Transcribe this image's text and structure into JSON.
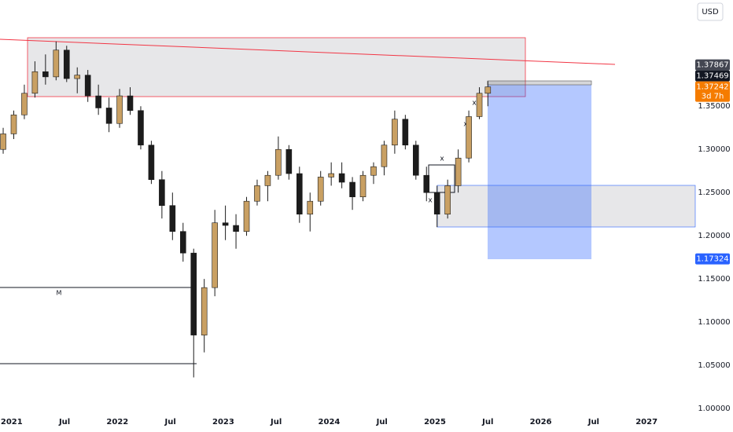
{
  "chart_data": {
    "type": "candlestick",
    "currency": "USD",
    "x": [
      2020.92,
      2021.02,
      2021.12,
      2021.22,
      2021.32,
      2021.42,
      2021.52,
      2021.62,
      2021.72,
      2021.82,
      2021.92,
      2022.02,
      2022.12,
      2022.22,
      2022.32,
      2022.42,
      2022.52,
      2022.62,
      2022.72,
      2022.82,
      2022.92,
      2023.02,
      2023.12,
      2023.22,
      2023.32,
      2023.42,
      2023.52,
      2023.62,
      2023.72,
      2023.82,
      2023.92,
      2024.02,
      2024.12,
      2024.22,
      2024.32,
      2024.42,
      2024.52,
      2024.62,
      2024.72,
      2024.82,
      2024.92,
      2025.02,
      2025.12,
      2025.22,
      2025.32,
      2025.42,
      2025.5
    ],
    "open": [
      1.3,
      1.318,
      1.34,
      1.365,
      1.39,
      1.384,
      1.415,
      1.382,
      1.386,
      1.362,
      1.348,
      1.33,
      1.362,
      1.345,
      1.305,
      1.265,
      1.235,
      1.205,
      1.18,
      1.085,
      1.14,
      1.215,
      1.212,
      1.205,
      1.24,
      1.258,
      1.27,
      1.3,
      1.272,
      1.225,
      1.24,
      1.268,
      1.272,
      1.262,
      1.245,
      1.27,
      1.28,
      1.305,
      1.335,
      1.305,
      1.27,
      1.25,
      1.225,
      1.258,
      1.29,
      1.338,
      1.365
    ],
    "high": [
      1.325,
      1.345,
      1.375,
      1.402,
      1.41,
      1.425,
      1.42,
      1.395,
      1.392,
      1.375,
      1.36,
      1.37,
      1.372,
      1.35,
      1.31,
      1.275,
      1.25,
      1.215,
      1.185,
      1.15,
      1.23,
      1.235,
      1.225,
      1.245,
      1.265,
      1.275,
      1.315,
      1.305,
      1.28,
      1.25,
      1.275,
      1.285,
      1.285,
      1.268,
      1.275,
      1.285,
      1.31,
      1.345,
      1.34,
      1.31,
      1.28,
      1.258,
      1.265,
      1.3,
      1.345,
      1.372,
      1.379
    ],
    "low": [
      1.295,
      1.312,
      1.335,
      1.36,
      1.375,
      1.38,
      1.378,
      1.365,
      1.355,
      1.34,
      1.32,
      1.325,
      1.34,
      1.3,
      1.26,
      1.22,
      1.195,
      1.17,
      1.036,
      1.065,
      1.13,
      1.195,
      1.185,
      1.2,
      1.235,
      1.24,
      1.265,
      1.265,
      1.215,
      1.205,
      1.235,
      1.258,
      1.255,
      1.23,
      1.24,
      1.26,
      1.27,
      1.295,
      1.3,
      1.265,
      1.24,
      1.21,
      1.22,
      1.25,
      1.285,
      1.335,
      1.35
    ],
    "close": [
      1.318,
      1.34,
      1.365,
      1.39,
      1.384,
      1.415,
      1.382,
      1.386,
      1.362,
      1.348,
      1.33,
      1.362,
      1.345,
      1.305,
      1.265,
      1.235,
      1.205,
      1.18,
      1.085,
      1.14,
      1.215,
      1.212,
      1.205,
      1.24,
      1.258,
      1.27,
      1.3,
      1.272,
      1.225,
      1.24,
      1.268,
      1.272,
      1.262,
      1.245,
      1.27,
      1.28,
      1.305,
      1.335,
      1.305,
      1.27,
      1.25,
      1.225,
      1.258,
      1.29,
      1.338,
      1.365,
      1.37242
    ],
    "up_color": "#c9a063",
    "down_color": "#1c1c1c",
    "xlim": [
      2020.89,
      2027.43
    ],
    "ylim": [
      0.991,
      1.473
    ],
    "xticks": [
      2021,
      {
        "value": 2021.5,
        "label": "Jul"
      },
      2022,
      {
        "value": 2022.5,
        "label": "Jul"
      },
      2023,
      {
        "value": 2023.5,
        "label": "Jul"
      },
      2024,
      {
        "value": 2024.5,
        "label": "Jul"
      },
      2025,
      {
        "value": 2025.5,
        "label": "Jul"
      },
      2026,
      {
        "value": 2026.5,
        "label": "Jul"
      },
      2027
    ],
    "yticks": [
      {
        "value": 1.0,
        "label": "1.00000"
      },
      {
        "value": 1.05,
        "label": "1.05000"
      },
      {
        "value": 1.1,
        "label": "1.10000"
      },
      {
        "value": 1.15,
        "label": "1.15000"
      },
      {
        "value": 1.2,
        "label": "1.20000"
      },
      {
        "value": 1.25,
        "label": "1.25000"
      },
      {
        "value": 1.3,
        "label": "1.30000"
      },
      {
        "value": 1.35,
        "label": "1.35000"
      }
    ],
    "markers": [
      {
        "value": 1.37867,
        "color": "#434651"
      },
      {
        "value": 1.37469,
        "color": "#131722"
      },
      {
        "value": 1.37242,
        "color": "#f57c00",
        "countdown": "3d 7h"
      },
      {
        "value": 1.17324,
        "color": "#2962ff"
      }
    ],
    "annotations": [
      "M",
      "x",
      "x",
      "x",
      "x"
    ]
  }
}
